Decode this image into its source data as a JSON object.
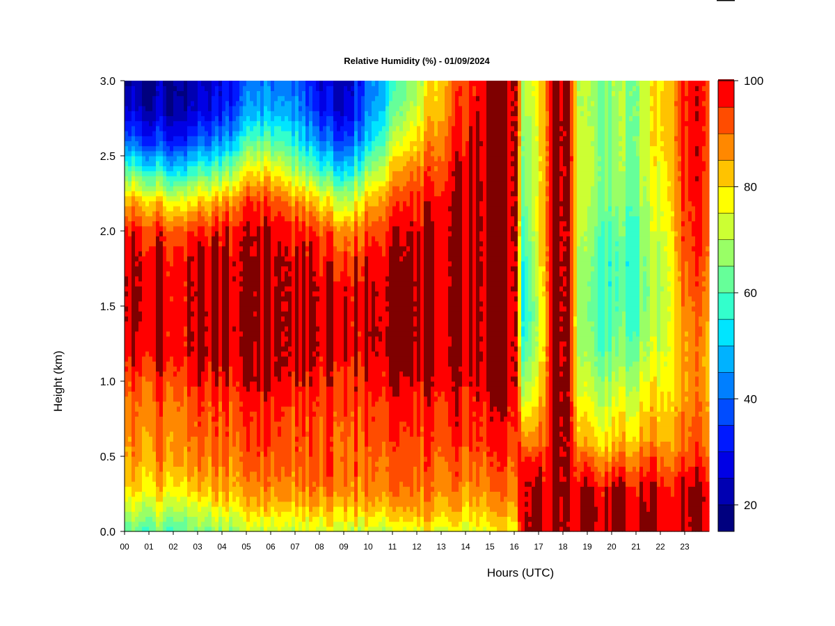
{
  "chart_data": {
    "type": "heatmap",
    "title": "Relative Humidity (%) - 01/09/2024",
    "xlabel": "Hours (UTC)",
    "ylabel": "Height (km)",
    "xlim": [
      0,
      24
    ],
    "ylim": [
      0.0,
      3.0
    ],
    "x_ticks": [
      "00",
      "01",
      "02",
      "03",
      "04",
      "05",
      "06",
      "07",
      "08",
      "09",
      "10",
      "11",
      "12",
      "13",
      "14",
      "15",
      "16",
      "17",
      "18",
      "19",
      "20",
      "21",
      "22",
      "23"
    ],
    "y_ticks": [
      "0.0",
      "0.5",
      "1.0",
      "1.5",
      "2.0",
      "2.5",
      "3.0"
    ],
    "colorbar": {
      "range": [
        15,
        100
      ],
      "tick_labels": [
        "20",
        "40",
        "60",
        "80",
        "100"
      ],
      "tick_values": [
        20,
        40,
        60,
        80,
        100
      ],
      "levels": [
        15,
        20,
        25,
        30,
        35,
        40,
        45,
        50,
        55,
        60,
        65,
        70,
        75,
        80,
        85,
        90,
        95,
        100
      ],
      "colors": [
        "#00007f",
        "#0000b2",
        "#0000e5",
        "#0019ff",
        "#004cff",
        "#007fff",
        "#00b2ff",
        "#00e5ff",
        "#33ffcc",
        "#66ff99",
        "#99ff66",
        "#ccff33",
        "#ffff00",
        "#ffc300",
        "#ff8800",
        "#ff4c00",
        "#ff0000",
        "#c30000",
        "#7f0000"
      ]
    },
    "heights_km": [
      0.0,
      0.1,
      0.2,
      0.3,
      0.4,
      0.5,
      0.6,
      0.8,
      1.0,
      1.2,
      1.4,
      1.6,
      1.8,
      2.0,
      2.2,
      2.4,
      2.6,
      2.8,
      3.0
    ],
    "time_columns": [
      {
        "t": 0.0,
        "rh": [
          60,
          68,
          74,
          80,
          83,
          85,
          86,
          88,
          92,
          97,
          100,
          100,
          100,
          97,
          84,
          62,
          40,
          26,
          20
        ]
      },
      {
        "t": 1.0,
        "rh": [
          62,
          70,
          76,
          82,
          84,
          86,
          88,
          90,
          94,
          100,
          100,
          100,
          100,
          96,
          82,
          58,
          36,
          24,
          20
        ]
      },
      {
        "t": 2.0,
        "rh": [
          62,
          70,
          76,
          82,
          86,
          88,
          90,
          91,
          95,
          100,
          100,
          100,
          100,
          94,
          78,
          54,
          34,
          23,
          22
        ]
      },
      {
        "t": 3.0,
        "rh": [
          64,
          70,
          76,
          82,
          86,
          88,
          90,
          92,
          96,
          100,
          100,
          100,
          100,
          95,
          80,
          58,
          38,
          26,
          22
        ]
      },
      {
        "t": 4.0,
        "rh": [
          66,
          72,
          80,
          84,
          86,
          88,
          90,
          92,
          96,
          100,
          100,
          100,
          100,
          96,
          84,
          62,
          42,
          30,
          26
        ]
      },
      {
        "t": 5.0,
        "rh": [
          70,
          76,
          82,
          86,
          88,
          90,
          92,
          94,
          98,
          100,
          100,
          100,
          100,
          98,
          92,
          76,
          58,
          44,
          38
        ]
      },
      {
        "t": 5.8,
        "rh": [
          72,
          78,
          84,
          88,
          90,
          92,
          94,
          95,
          100,
          100,
          100,
          100,
          100,
          99,
          94,
          80,
          62,
          48,
          42
        ]
      },
      {
        "t": 7.0,
        "rh": [
          72,
          78,
          84,
          88,
          90,
          92,
          92,
          94,
          98,
          100,
          100,
          100,
          100,
          97,
          88,
          70,
          56,
          46,
          40
        ]
      },
      {
        "t": 8.0,
        "rh": [
          74,
          80,
          86,
          90,
          92,
          92,
          92,
          94,
          96,
          100,
          100,
          100,
          98,
          94,
          80,
          60,
          44,
          32,
          28
        ]
      },
      {
        "t": 9.0,
        "rh": [
          72,
          80,
          86,
          90,
          92,
          92,
          92,
          94,
          96,
          100,
          100,
          99,
          95,
          88,
          72,
          52,
          36,
          26,
          22
        ]
      },
      {
        "t": 10.0,
        "rh": [
          72,
          80,
          86,
          88,
          90,
          90,
          92,
          94,
          96,
          100,
          100,
          100,
          97,
          92,
          82,
          66,
          50,
          42,
          40
        ]
      },
      {
        "t": 11.0,
        "rh": [
          70,
          78,
          84,
          88,
          90,
          90,
          92,
          94,
          98,
          100,
          100,
          100,
          98,
          96,
          90,
          80,
          68,
          58,
          54
        ]
      },
      {
        "t": 12.0,
        "rh": [
          74,
          82,
          86,
          88,
          90,
          90,
          92,
          94,
          98,
          100,
          100,
          100,
          100,
          98,
          94,
          88,
          80,
          72,
          68
        ]
      },
      {
        "t": 13.0,
        "rh": [
          76,
          82,
          86,
          88,
          90,
          92,
          94,
          96,
          98,
          100,
          100,
          100,
          100,
          100,
          98,
          94,
          90,
          86,
          84
        ]
      },
      {
        "t": 14.0,
        "rh": [
          74,
          80,
          84,
          88,
          90,
          92,
          94,
          96,
          98,
          100,
          100,
          100,
          100,
          100,
          100,
          100,
          98,
          96,
          94
        ]
      },
      {
        "t": 15.0,
        "rh": [
          74,
          80,
          84,
          88,
          90,
          92,
          94,
          96,
          100,
          100,
          100,
          100,
          100,
          100,
          100,
          100,
          100,
          100,
          100
        ]
      },
      {
        "t": 16.1,
        "rh": [
          76,
          82,
          86,
          88,
          90,
          92,
          94,
          96,
          100,
          100,
          100,
          100,
          100,
          100,
          100,
          100,
          100,
          100,
          100
        ]
      },
      {
        "t": 16.3,
        "rh": [
          100,
          100,
          100,
          100,
          98,
          96,
          88,
          78,
          66,
          58,
          54,
          52,
          54,
          58,
          62,
          64,
          66,
          68,
          70
        ]
      },
      {
        "t": 17.0,
        "rh": [
          100,
          100,
          100,
          100,
          96,
          92,
          86,
          80,
          74,
          70,
          68,
          70,
          72,
          74,
          74,
          72,
          72,
          74,
          76
        ]
      },
      {
        "t": 17.5,
        "rh": [
          100,
          100,
          100,
          100,
          100,
          100,
          100,
          100,
          100,
          100,
          100,
          100,
          100,
          100,
          100,
          100,
          100,
          100,
          100
        ]
      },
      {
        "t": 18.3,
        "rh": [
          100,
          100,
          100,
          100,
          100,
          100,
          100,
          100,
          100,
          100,
          100,
          100,
          100,
          100,
          100,
          100,
          100,
          100,
          100
        ]
      },
      {
        "t": 18.7,
        "rh": [
          100,
          100,
          100,
          98,
          94,
          88,
          82,
          76,
          70,
          66,
          64,
          64,
          66,
          68,
          70,
          72,
          70,
          68,
          68
        ]
      },
      {
        "t": 20.0,
        "rh": [
          100,
          100,
          100,
          98,
          92,
          86,
          80,
          74,
          68,
          62,
          60,
          58,
          58,
          60,
          64,
          66,
          66,
          66,
          66
        ]
      },
      {
        "t": 21.0,
        "rh": [
          100,
          100,
          100,
          98,
          94,
          90,
          84,
          78,
          72,
          66,
          62,
          60,
          60,
          62,
          64,
          66,
          68,
          68,
          68
        ]
      },
      {
        "t": 22.0,
        "rh": [
          100,
          100,
          100,
          98,
          94,
          90,
          86,
          82,
          78,
          74,
          72,
          70,
          72,
          74,
          76,
          78,
          80,
          80,
          80
        ]
      },
      {
        "t": 23.0,
        "rh": [
          100,
          100,
          100,
          100,
          96,
          92,
          90,
          88,
          86,
          86,
          88,
          90,
          92,
          94,
          94,
          96,
          96,
          96,
          96
        ]
      },
      {
        "t": 24.0,
        "rh": [
          100,
          100,
          100,
          100,
          96,
          92,
          90,
          88,
          86,
          86,
          88,
          90,
          92,
          94,
          94,
          96,
          96,
          96,
          96
        ]
      }
    ]
  }
}
